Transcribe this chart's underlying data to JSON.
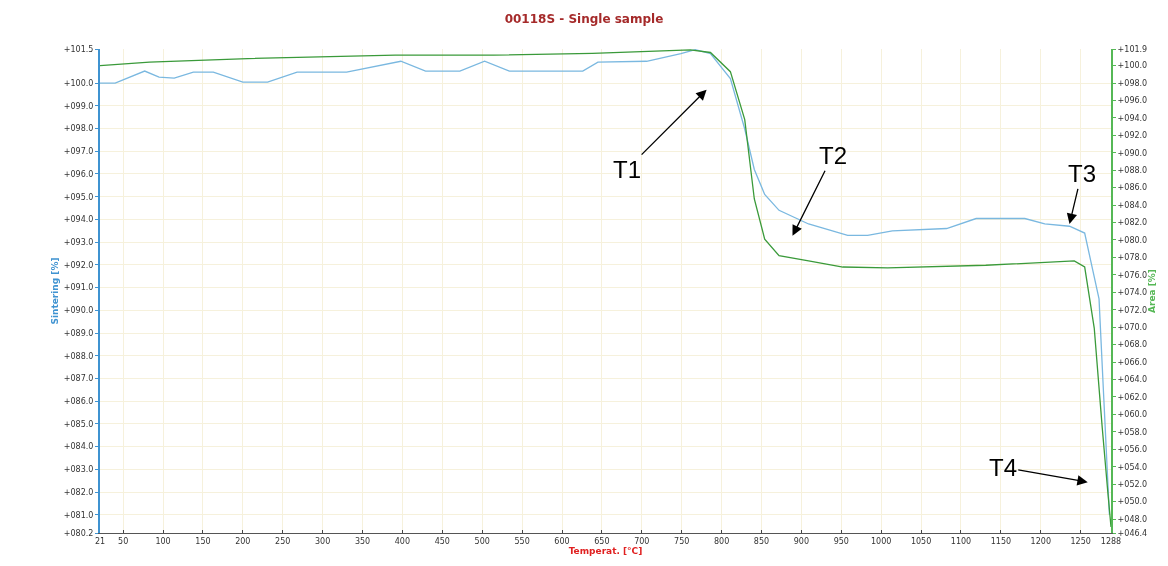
{
  "chart_data": {
    "type": "line",
    "title": "00118S - Single sample",
    "xlabel": "Temperat. [°C]",
    "ylabel": "Sintering [%]",
    "y2label": "Area [%]",
    "xlim": [
      21,
      1288
    ],
    "xticks": [
      21,
      50,
      100,
      150,
      200,
      250,
      300,
      350,
      400,
      450,
      500,
      550,
      600,
      650,
      700,
      750,
      800,
      850,
      900,
      950,
      1000,
      1050,
      1100,
      1150,
      1200,
      1250,
      1288
    ],
    "ylim": [
      80.2,
      101.5
    ],
    "yticks": [
      {
        "value": 80.2,
        "label": "+080.2"
      },
      {
        "value": 81,
        "label": "+081.0"
      },
      {
        "value": 82,
        "label": "+082.0"
      },
      {
        "value": 83,
        "label": "+083.0"
      },
      {
        "value": 84,
        "label": "+084.0"
      },
      {
        "value": 85,
        "label": "+085.0"
      },
      {
        "value": 86,
        "label": "+086.0"
      },
      {
        "value": 87,
        "label": "+087.0"
      },
      {
        "value": 88,
        "label": "+088.0"
      },
      {
        "value": 89,
        "label": "+089.0"
      },
      {
        "value": 90,
        "label": "+090.0"
      },
      {
        "value": 91,
        "label": "+091.0"
      },
      {
        "value": 92,
        "label": "+092.0"
      },
      {
        "value": 93,
        "label": "+093.0"
      },
      {
        "value": 94,
        "label": "+094.0"
      },
      {
        "value": 95,
        "label": "+095.0"
      },
      {
        "value": 96,
        "label": "+096.0"
      },
      {
        "value": 97,
        "label": "+097.0"
      },
      {
        "value": 98,
        "label": "+098.0"
      },
      {
        "value": 99,
        "label": "+099.0"
      },
      {
        "value": 100,
        "label": "+100.0"
      },
      {
        "value": 101.5,
        "label": "+101.5"
      }
    ],
    "y2lim": [
      46.4,
      101.9
    ],
    "y2ticks": [
      {
        "value": 46.4,
        "label": "+046.4"
      },
      {
        "value": 48,
        "label": "+048.0"
      },
      {
        "value": 50,
        "label": "+050.0"
      },
      {
        "value": 52,
        "label": "+052.0"
      },
      {
        "value": 54,
        "label": "+054.0"
      },
      {
        "value": 56,
        "label": "+056.0"
      },
      {
        "value": 58,
        "label": "+058.0"
      },
      {
        "value": 60,
        "label": "+060.0"
      },
      {
        "value": 62,
        "label": "+062.0"
      },
      {
        "value": 64,
        "label": "+064.0"
      },
      {
        "value": 66,
        "label": "+066.0"
      },
      {
        "value": 68,
        "label": "+068.0"
      },
      {
        "value": 70,
        "label": "+070.0"
      },
      {
        "value": 72,
        "label": "+072.0"
      },
      {
        "value": 74,
        "label": "+074.0"
      },
      {
        "value": 76,
        "label": "+076.0"
      },
      {
        "value": 78,
        "label": "+078.0"
      },
      {
        "value": 80,
        "label": "+080.0"
      },
      {
        "value": 82,
        "label": "+082.0"
      },
      {
        "value": 84,
        "label": "+084.0"
      },
      {
        "value": 86,
        "label": "+086.0"
      },
      {
        "value": 88,
        "label": "+088.0"
      },
      {
        "value": 90,
        "label": "+090.0"
      },
      {
        "value": 92,
        "label": "+092.0"
      },
      {
        "value": 94,
        "label": "+094.0"
      },
      {
        "value": 96,
        "label": "+096.0"
      },
      {
        "value": 98,
        "label": "+098.0"
      },
      {
        "value": 100,
        "label": "+100.0"
      },
      {
        "value": 101.9,
        "label": "+101.9"
      }
    ],
    "grid": true,
    "marker": "none",
    "line_style": "solid",
    "series": [
      {
        "color": "#7ab8e0",
        "x": [
          21,
          40,
          77,
          95,
          114,
          138,
          163,
          200,
          231,
          268,
          330,
          398,
          429,
          472,
          503,
          534,
          626,
          645,
          706,
          749,
          767,
          786,
          811,
          829,
          841,
          854,
          872,
          909,
          958,
          983,
          1014,
          1082,
          1119,
          1180,
          1205,
          1236,
          1255,
          1273,
          1279,
          1286
        ],
        "values": [
          100.0,
          100.0,
          100.53,
          100.26,
          100.22,
          100.48,
          100.48,
          100.04,
          100.04,
          100.48,
          100.48,
          100.96,
          100.53,
          100.53,
          100.96,
          100.53,
          100.53,
          100.92,
          100.96,
          101.3,
          101.47,
          101.3,
          100.2,
          97.98,
          96.2,
          95.1,
          94.4,
          93.8,
          93.3,
          93.3,
          93.5,
          93.6,
          94.04,
          94.04,
          93.8,
          93.7,
          93.4,
          90.5,
          86.1,
          81.0
        ]
      },
      {
        "color": "#3a9a3a",
        "x": [
          21,
          83,
          206,
          391,
          514,
          638,
          761,
          786,
          811,
          829,
          841,
          854,
          872,
          909,
          952,
          1008,
          1131,
          1242,
          1255,
          1267,
          1277,
          1284,
          1288
        ],
        "values": [
          100.0,
          100.4,
          100.8,
          101.2,
          101.2,
          101.4,
          101.8,
          101.5,
          99.3,
          93.8,
          84.7,
          80.1,
          78.2,
          77.6,
          76.9,
          76.8,
          77.1,
          77.6,
          76.9,
          69.9,
          58.5,
          51.1,
          47.1
        ],
        "axis": "y2"
      }
    ],
    "annotations": [
      "T1",
      "T2",
      {
        "text": "T3",
        "x": 1236,
        "y": 93.8
      },
      "T4"
    ]
  }
}
